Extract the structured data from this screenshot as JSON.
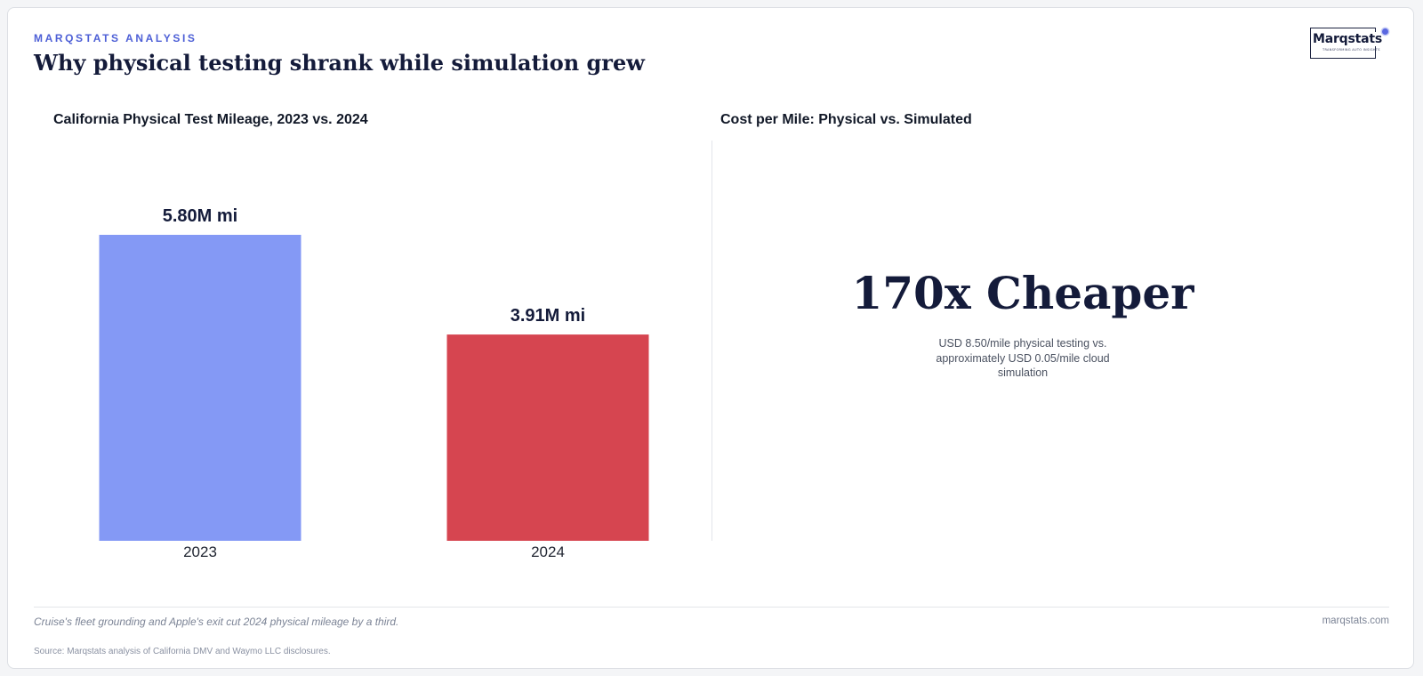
{
  "header": {
    "kicker": "MARQSTATS ANALYSIS",
    "title": "Why physical testing shrank while simulation grew"
  },
  "logo": {
    "wordmark": "Marqstats",
    "tagline": "TRANSFORMING AUTO INSIGHTS"
  },
  "left_panel": {
    "title": "California Physical Test Mileage, 2023 vs. 2024"
  },
  "right_panel": {
    "title": "Cost per Mile: Physical vs. Simulated",
    "stat": "170x Cheaper",
    "note": "USD 8.50/mile physical testing vs. approximately USD 0.05/mile cloud simulation"
  },
  "footer": {
    "note": "Cruise's fleet grounding and Apple's exit cut 2024 physical mileage by a third.",
    "site": "marqstats.com",
    "source": "Source: Marqstats analysis of California DMV and Waymo LLC disclosures."
  },
  "colors": {
    "bar_2023": "#8499f5",
    "bar_2024": "#d64550",
    "accent": "#4d5fd6"
  },
  "chart_data": {
    "type": "bar",
    "title": "California Physical Test Mileage, 2023 vs. 2024",
    "categories": [
      "2023",
      "2024"
    ],
    "values": [
      5.8,
      3.91
    ],
    "unit": "M mi",
    "data_labels": [
      "5.80M mi",
      "3.91M mi"
    ],
    "ylim": [
      0,
      5.8
    ],
    "grid": false,
    "legend": "none"
  }
}
